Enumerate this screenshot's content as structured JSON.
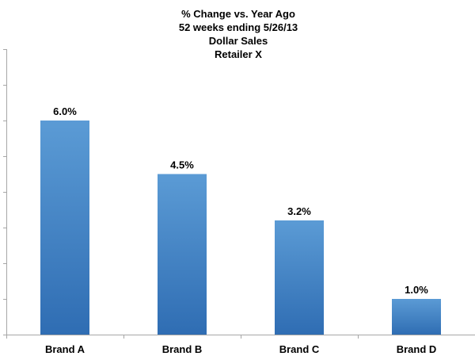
{
  "chart_data": {
    "type": "bar",
    "title_lines": [
      "% Change vs. Year Ago",
      "52 weeks ending 5/26/13",
      "Dollar Sales",
      "Retailer X"
    ],
    "categories": [
      "Brand A",
      "Brand B",
      "Brand C",
      "Brand D"
    ],
    "values": [
      6.0,
      4.5,
      3.2,
      1.0
    ],
    "data_labels": [
      "6.0%",
      "4.5%",
      "3.2%",
      "1.0%"
    ],
    "xlabel": "",
    "ylabel": "",
    "ylim": [
      0,
      8
    ],
    "y_tick_step": 1,
    "y_tick_labels_visible": false,
    "grid": false,
    "legend": "none",
    "colors": {
      "bar_top": "#5b9bd5",
      "bar_bottom": "#2f6db3",
      "axis": "#a6a6a6"
    }
  }
}
